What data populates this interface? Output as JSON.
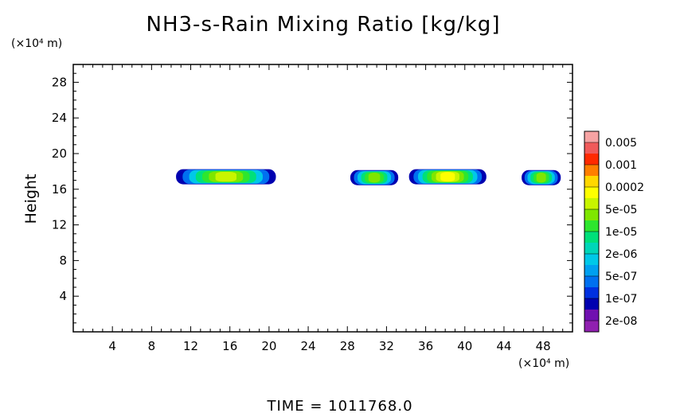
{
  "chart_data": {
    "type": "heatmap",
    "title": "NH3-s-Rain Mixing Ratio [kg/kg]",
    "ylabel": "Height",
    "xlabel": "",
    "x_unit": "(×10⁴ m)",
    "y_unit": "(×10⁴ m)",
    "xlim": [
      0,
      51
    ],
    "ylim": [
      0,
      30
    ],
    "x_ticks": [
      4,
      8,
      12,
      16,
      20,
      24,
      28,
      32,
      36,
      40,
      44,
      48
    ],
    "y_ticks": [
      4,
      8,
      12,
      16,
      20,
      24,
      28
    ],
    "colorbar": {
      "labels": [
        "0.005",
        "0.001",
        "0.0002",
        "5e-05",
        "1e-05",
        "2e-06",
        "5e-07",
        "1e-07",
        "2e-08"
      ],
      "colors_top_to_bottom": [
        "#f6a3a3",
        "#f05a5a",
        "#ff2a00",
        "#ff7f00",
        "#ffd700",
        "#ffff00",
        "#c8f500",
        "#7fe600",
        "#2ee62e",
        "#00e07a",
        "#00d6b8",
        "#00c8e8",
        "#00a0f0",
        "#0070f0",
        "#0030e0",
        "#0000b0",
        "#7010b0",
        "#9020b0"
      ]
    },
    "features": [
      {
        "x_range": [
          10.5,
          20.7
        ],
        "y_center": 17.4,
        "peak_level": "5e-05"
      },
      {
        "x_range": [
          28.3,
          33.2
        ],
        "y_center": 17.3,
        "peak_level": "1e-05"
      },
      {
        "x_range": [
          34.3,
          42.2
        ],
        "y_center": 17.4,
        "peak_level": "0.0002"
      },
      {
        "x_range": [
          45.8,
          49.8
        ],
        "y_center": 17.3,
        "peak_level": "1e-05"
      }
    ]
  },
  "footer": {
    "time_label": "TIME = 1011768.0"
  }
}
